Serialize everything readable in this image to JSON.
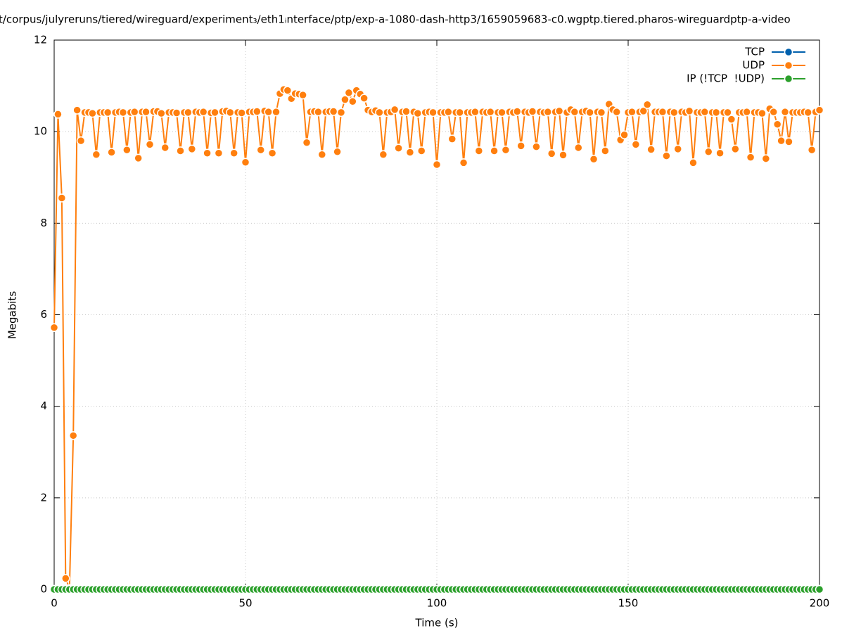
{
  "chart_data": {
    "type": "line",
    "title": "t/corpus/julyreruns/tiered/wireguard/experiment₃/eth1ᵢnterface/ptp/exp-a-1080-dash-http3/1659059683-c0.wgptp.tiered.pharos-wireguardptp-a-video",
    "x_label": "Time (s)",
    "y_label": "Megabits",
    "xlim": [
      0,
      200
    ],
    "xticks": [
      0,
      50,
      100,
      150,
      200
    ],
    "ylim": [
      0,
      12
    ],
    "yticks": [
      0,
      2,
      4,
      6,
      8,
      10,
      12
    ],
    "grid": true,
    "legend": "top-right",
    "x": [
      0,
      1,
      2,
      3,
      4,
      5,
      6,
      7,
      8,
      9,
      10,
      11,
      12,
      13,
      14,
      15,
      16,
      17,
      18,
      19,
      20,
      21,
      22,
      23,
      24,
      25,
      26,
      27,
      28,
      29,
      30,
      31,
      32,
      33,
      34,
      35,
      36,
      37,
      38,
      39,
      40,
      41,
      42,
      43,
      44,
      45,
      46,
      47,
      48,
      49,
      50,
      51,
      52,
      53,
      54,
      55,
      56,
      57,
      58,
      59,
      60,
      61,
      62,
      63,
      64,
      65,
      66,
      67,
      68,
      69,
      70,
      71,
      72,
      73,
      74,
      75,
      76,
      77,
      78,
      79,
      80,
      81,
      82,
      83,
      84,
      85,
      86,
      87,
      88,
      89,
      90,
      91,
      92,
      93,
      94,
      95,
      96,
      97,
      98,
      99,
      100,
      101,
      102,
      103,
      104,
      105,
      106,
      107,
      108,
      109,
      110,
      111,
      112,
      113,
      114,
      115,
      116,
      117,
      118,
      119,
      120,
      121,
      122,
      123,
      124,
      125,
      126,
      127,
      128,
      129,
      130,
      131,
      132,
      133,
      134,
      135,
      136,
      137,
      138,
      139,
      140,
      141,
      142,
      143,
      144,
      145,
      146,
      147,
      148,
      149,
      150,
      151,
      152,
      153,
      154,
      155,
      156,
      157,
      158,
      159,
      160,
      161,
      162,
      163,
      164,
      165,
      166,
      167,
      168,
      169,
      170,
      171,
      172,
      173,
      174,
      175,
      176,
      177,
      178,
      179,
      180,
      181,
      182,
      183,
      184,
      185,
      186,
      187,
      188,
      189,
      190,
      191,
      192,
      193,
      194,
      195,
      196,
      197,
      198,
      199,
      200
    ],
    "series": [
      {
        "name": "TCP",
        "color": "#0060ad",
        "values": [
          0,
          0,
          0,
          0,
          0,
          0,
          0,
          0,
          0,
          0,
          0,
          0,
          0,
          0,
          0,
          0,
          0,
          0,
          0,
          0,
          0,
          0,
          0,
          0,
          0,
          0,
          0,
          0,
          0,
          0,
          0,
          0,
          0,
          0,
          0,
          0,
          0,
          0,
          0,
          0,
          0,
          0,
          0,
          0,
          0,
          0,
          0,
          0,
          0,
          0,
          0,
          0,
          0,
          0,
          0,
          0,
          0,
          0,
          0,
          0,
          0,
          0,
          0,
          0,
          0,
          0,
          0,
          0,
          0,
          0,
          0,
          0,
          0,
          0,
          0,
          0,
          0,
          0,
          0,
          0,
          0,
          0,
          0,
          0,
          0,
          0,
          0,
          0,
          0,
          0,
          0,
          0,
          0,
          0,
          0,
          0,
          0,
          0,
          0,
          0,
          0,
          0,
          0,
          0,
          0,
          0,
          0,
          0,
          0,
          0,
          0,
          0,
          0,
          0,
          0,
          0,
          0,
          0,
          0,
          0,
          0,
          0,
          0,
          0,
          0,
          0,
          0,
          0,
          0,
          0,
          0,
          0,
          0,
          0,
          0,
          0,
          0,
          0,
          0,
          0,
          0,
          0,
          0,
          0,
          0,
          0,
          0,
          0,
          0,
          0,
          0,
          0,
          0,
          0,
          0,
          0,
          0,
          0,
          0,
          0,
          0,
          0,
          0,
          0,
          0,
          0,
          0,
          0,
          0,
          0,
          0,
          0,
          0,
          0,
          0,
          0,
          0,
          0,
          0,
          0,
          0,
          0,
          0,
          0,
          0,
          0,
          0,
          0,
          0,
          0,
          0,
          0,
          0,
          0,
          0,
          0,
          0,
          0,
          0,
          0,
          0
        ]
      },
      {
        "name": "UDP",
        "color": "#ff7f0e",
        "values": [
          5.72,
          10.38,
          8.55,
          0.24,
          0.02,
          3.36,
          10.47,
          9.8,
          10.42,
          10.42,
          10.4,
          9.5,
          10.42,
          10.42,
          10.42,
          9.55,
          10.42,
          10.43,
          10.42,
          9.6,
          10.42,
          10.43,
          9.42,
          10.43,
          10.43,
          9.72,
          10.44,
          10.44,
          10.4,
          9.65,
          10.42,
          10.42,
          10.41,
          9.58,
          10.42,
          10.42,
          9.62,
          10.43,
          10.42,
          10.43,
          9.53,
          10.41,
          10.42,
          9.53,
          10.44,
          10.45,
          10.42,
          9.53,
          10.42,
          10.41,
          9.33,
          10.43,
          10.43,
          10.44,
          9.6,
          10.45,
          10.43,
          9.53,
          10.43,
          10.83,
          10.92,
          10.9,
          10.72,
          10.83,
          10.82,
          10.8,
          9.76,
          10.43,
          10.44,
          10.43,
          9.5,
          10.43,
          10.44,
          10.44,
          9.56,
          10.42,
          10.7,
          10.85,
          10.66,
          10.9,
          10.82,
          10.73,
          10.47,
          10.43,
          10.46,
          10.42,
          9.5,
          10.42,
          10.43,
          10.48,
          9.64,
          10.43,
          10.44,
          9.55,
          10.43,
          10.4,
          9.58,
          10.42,
          10.43,
          10.42,
          9.28,
          10.42,
          10.42,
          10.43,
          9.84,
          10.42,
          10.42,
          9.32,
          10.42,
          10.42,
          10.43,
          9.58,
          10.43,
          10.42,
          10.43,
          9.58,
          10.42,
          10.42,
          9.6,
          10.43,
          10.42,
          10.44,
          9.69,
          10.43,
          10.42,
          10.44,
          9.67,
          10.43,
          10.42,
          10.43,
          9.52,
          10.43,
          10.45,
          9.49,
          10.42,
          10.48,
          10.43,
          9.65,
          10.43,
          10.45,
          10.42,
          9.4,
          10.43,
          10.42,
          9.58,
          10.6,
          10.48,
          10.43,
          9.82,
          9.93,
          10.42,
          10.43,
          9.72,
          10.43,
          10.45,
          10.59,
          9.61,
          10.43,
          10.43,
          10.43,
          9.47,
          10.43,
          10.42,
          9.62,
          10.43,
          10.42,
          10.45,
          9.32,
          10.42,
          10.42,
          10.43,
          9.56,
          10.42,
          10.42,
          9.53,
          10.42,
          10.42,
          10.27,
          9.62,
          10.42,
          10.42,
          10.43,
          9.44,
          10.42,
          10.42,
          10.4,
          9.41,
          10.5,
          10.43,
          10.16,
          9.8,
          10.43,
          9.78,
          10.42,
          10.42,
          10.42,
          10.43,
          10.42,
          9.6,
          10.43,
          10.47
        ]
      },
      {
        "name": "IP (!TCP  !UDP)",
        "color": "#2ca02c",
        "values": [
          0,
          0,
          0,
          0,
          0,
          0,
          0,
          0,
          0,
          0,
          0,
          0,
          0,
          0,
          0,
          0,
          0,
          0,
          0,
          0,
          0,
          0,
          0,
          0,
          0,
          0,
          0,
          0,
          0,
          0,
          0,
          0,
          0,
          0,
          0,
          0,
          0,
          0,
          0,
          0,
          0,
          0,
          0,
          0,
          0,
          0,
          0,
          0,
          0,
          0,
          0,
          0,
          0,
          0,
          0,
          0,
          0,
          0,
          0,
          0,
          0,
          0,
          0,
          0,
          0,
          0,
          0,
          0,
          0,
          0,
          0,
          0,
          0,
          0,
          0,
          0,
          0,
          0,
          0,
          0,
          0,
          0,
          0,
          0,
          0,
          0,
          0,
          0,
          0,
          0,
          0,
          0,
          0,
          0,
          0,
          0,
          0,
          0,
          0,
          0,
          0,
          0,
          0,
          0,
          0,
          0,
          0,
          0,
          0,
          0,
          0,
          0,
          0,
          0,
          0,
          0,
          0,
          0,
          0,
          0,
          0,
          0,
          0,
          0,
          0,
          0,
          0,
          0,
          0,
          0,
          0,
          0,
          0,
          0,
          0,
          0,
          0,
          0,
          0,
          0,
          0,
          0,
          0,
          0,
          0,
          0,
          0,
          0,
          0,
          0,
          0,
          0,
          0,
          0,
          0,
          0,
          0,
          0,
          0,
          0,
          0,
          0,
          0,
          0,
          0,
          0,
          0,
          0,
          0,
          0,
          0,
          0,
          0,
          0,
          0,
          0,
          0,
          0,
          0,
          0,
          0,
          0,
          0,
          0,
          0,
          0,
          0,
          0,
          0,
          0,
          0,
          0,
          0,
          0,
          0,
          0,
          0,
          0,
          0,
          0,
          0
        ]
      }
    ]
  }
}
